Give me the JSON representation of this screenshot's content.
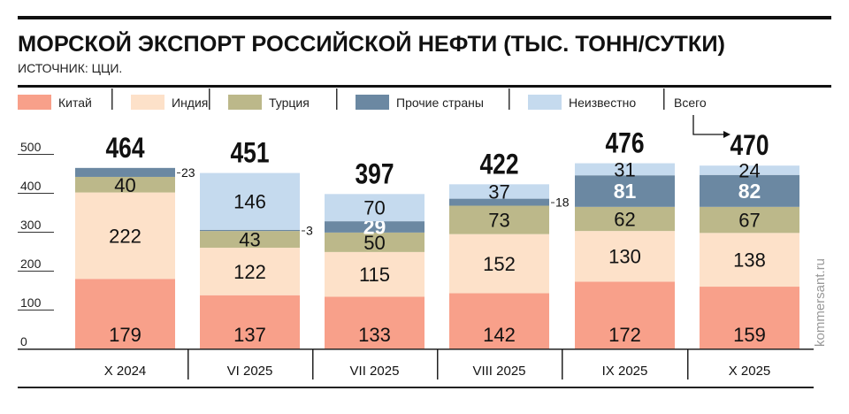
{
  "title": "МОРСКОЙ ЭКСПОРТ РОССИЙСКОЙ НЕФТИ (ТЫС. ТОНН/СУТКИ)",
  "subtitle": "ИСТОЧНИК: ЦЦИ.",
  "watermark": "kommersant.ru",
  "chart_data": {
    "type": "bar",
    "stacked": true,
    "categories": [
      "X 2024",
      "VI 2025",
      "VII 2025",
      "VIII 2025",
      "IX 2025",
      "X 2025"
    ],
    "series": [
      {
        "name": "Китай",
        "color": "#f8a08a",
        "values": [
          179,
          137,
          133,
          142,
          172,
          159
        ]
      },
      {
        "name": "Индия",
        "color": "#fde1c9",
        "values": [
          222,
          122,
          115,
          152,
          130,
          138
        ]
      },
      {
        "name": "Турция",
        "color": "#bcb88a",
        "values": [
          40,
          43,
          50,
          73,
          62,
          67
        ]
      },
      {
        "name": "Прочие страны",
        "color": "#6b88a2",
        "values": [
          23,
          3,
          29,
          18,
          81,
          82
        ]
      },
      {
        "name": "Неизвестно",
        "color": "#c5daee",
        "values": [
          0,
          146,
          70,
          37,
          31,
          24
        ]
      }
    ],
    "totals_label": "Всего",
    "totals": [
      464,
      451,
      397,
      422,
      476,
      470
    ],
    "yticks": [
      0,
      100,
      200,
      300,
      400,
      500
    ],
    "ylim": [
      0,
      500
    ],
    "legend": "top"
  }
}
